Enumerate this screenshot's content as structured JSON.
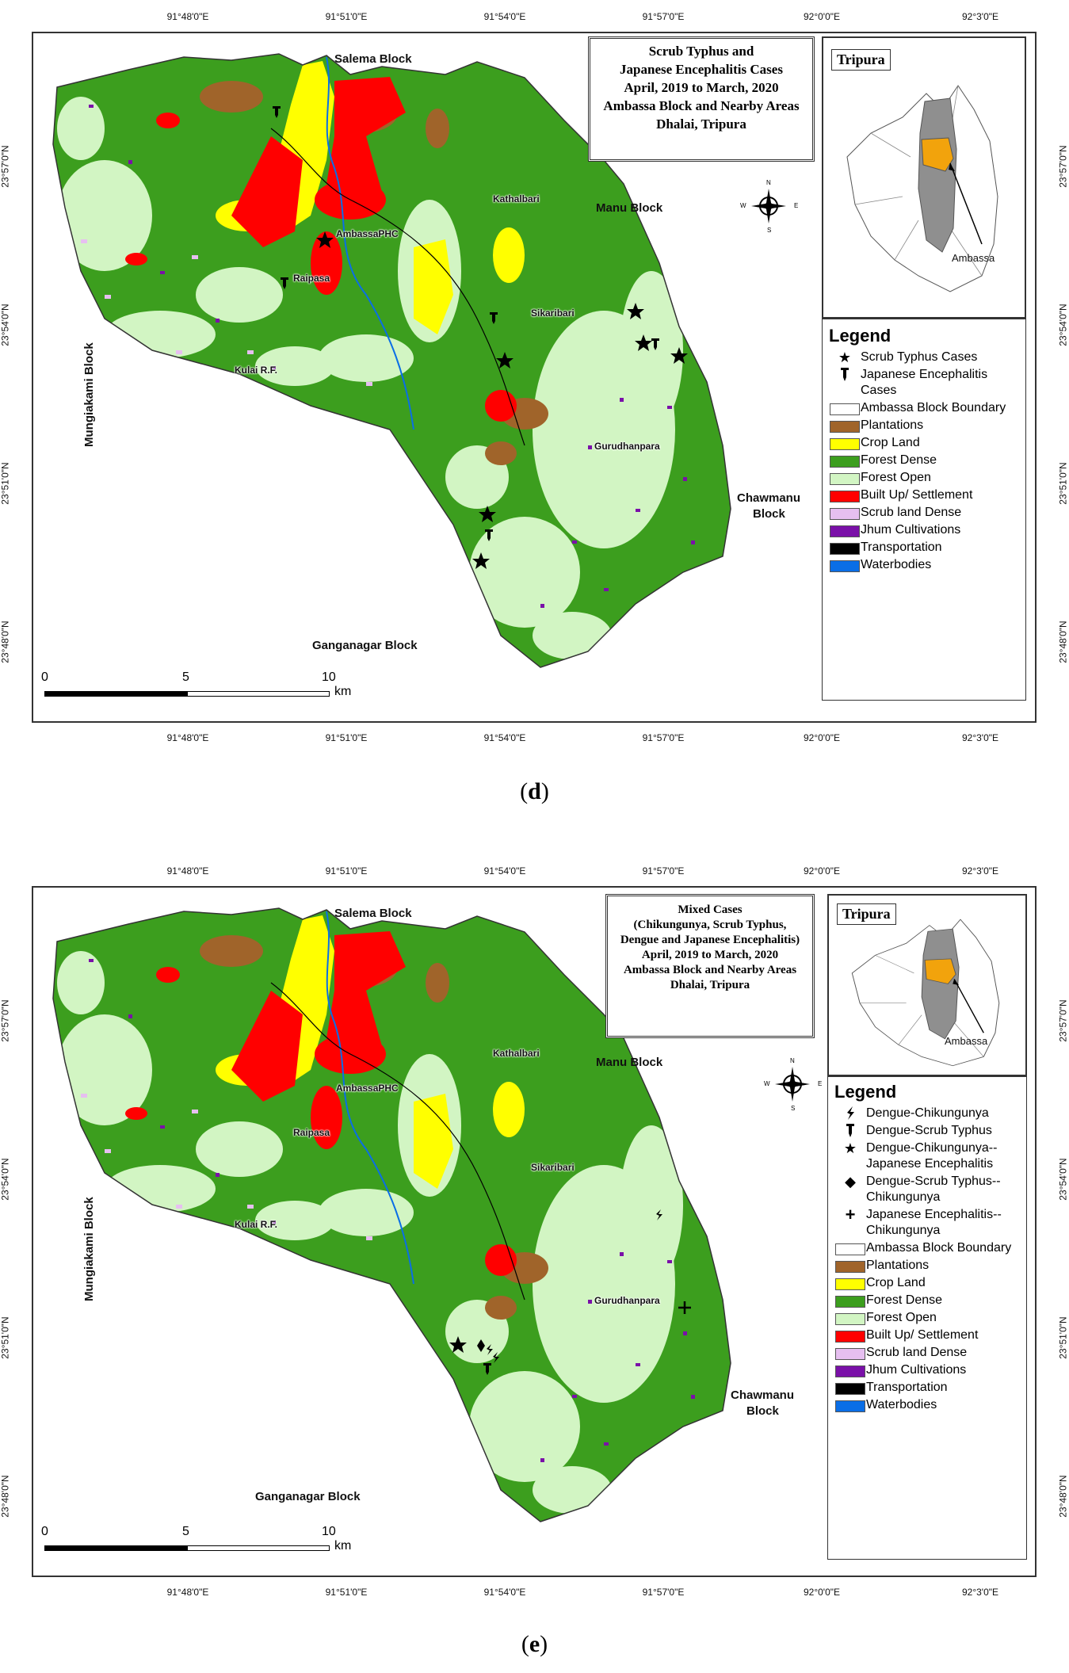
{
  "panels": [
    {
      "id": "d",
      "caption": "d",
      "title_lines": [
        "Scrub Typhus and",
        "Japanese Encephalitis Cases",
        "April, 2019 to March, 2020",
        "Ambassa Block and Nearby Areas",
        "Dhalai, Tripura"
      ],
      "legend_title": "Legend",
      "case_symbols": [
        {
          "symbol": "star",
          "label": "Scrub Typhus Cases"
        },
        {
          "symbol": "pin",
          "label": "Japanese Encephalitis Cases"
        }
      ]
    },
    {
      "id": "e",
      "caption": "e",
      "title_lines": [
        "Mixed Cases",
        "(Chikungunya, Scrub Typhus,",
        "Dengue and Japanese Encephalitis)",
        "April, 2019 to March, 2020",
        "Ambassa Block and Nearby Areas",
        "Dhalai, Tripura"
      ],
      "legend_title": "Legend",
      "case_symbols": [
        {
          "symbol": "bolt",
          "label": "Dengue-Chikungunya"
        },
        {
          "symbol": "pin",
          "label": "Dengue-Scrub Typhus"
        },
        {
          "symbol": "star",
          "label": "Dengue-Chikungunya--Japanese Encephalitis"
        },
        {
          "symbol": "diamond",
          "label": "Dengue-Scrub Typhus--Chikungunya"
        },
        {
          "symbol": "cross",
          "label": "Japanese Encephalitis--Chikungunya"
        }
      ]
    }
  ],
  "landcover": [
    {
      "label": "Ambassa Block Boundary",
      "color": "#ffffff"
    },
    {
      "label": "Plantations",
      "color": "#a0642a"
    },
    {
      "label": "Crop Land",
      "color": "#ffff00"
    },
    {
      "label": "Forest Dense",
      "color": "#3c9e1e"
    },
    {
      "label": "Forest Open",
      "color": "#d2f5c3"
    },
    {
      "label": "Built Up/ Settlement",
      "color": "#ff0000"
    },
    {
      "label": "Scrub land Dense",
      "color": "#e6bff0"
    },
    {
      "label": "Jhum Cultivations",
      "color": "#7a10a8"
    },
    {
      "label": "Transportation",
      "color": "#000000"
    },
    {
      "label": "Waterbodies",
      "color": "#0a6ee6"
    }
  ],
  "coords": {
    "lon": [
      "91°48'0\"E",
      "91°51'0\"E",
      "91°54'0\"E",
      "91°57'0\"E",
      "92°0'0\"E",
      "92°3'0\"E"
    ],
    "lat": [
      "23°57'0\"N",
      "23°54'0\"N",
      "23°51'0\"N",
      "23°48'0\"N"
    ]
  },
  "blocks": {
    "salema": "Salema Block",
    "manu": "Manu Block",
    "mungiakami": "Mungiakami Block",
    "chawmanu_1": "Chawmanu",
    "chawmanu_2": "Block",
    "ganganagar": "Ganganagar Block"
  },
  "places": {
    "kathalbari": "Kathalbari",
    "ambassa_phc": "AmbassaPHC",
    "raipasa": "Raipasa",
    "sikaribari": "Sikaribari",
    "kulai": "Kulai R.F.",
    "gurudhanpara": "Gurudhanpara"
  },
  "inset": {
    "title": "Tripura",
    "label": "Ambassa"
  },
  "compass": {
    "n": "N",
    "s": "S",
    "e": "E",
    "w": "W"
  },
  "scale": {
    "ticks": [
      "0",
      "5",
      "10"
    ],
    "unit": "km"
  }
}
